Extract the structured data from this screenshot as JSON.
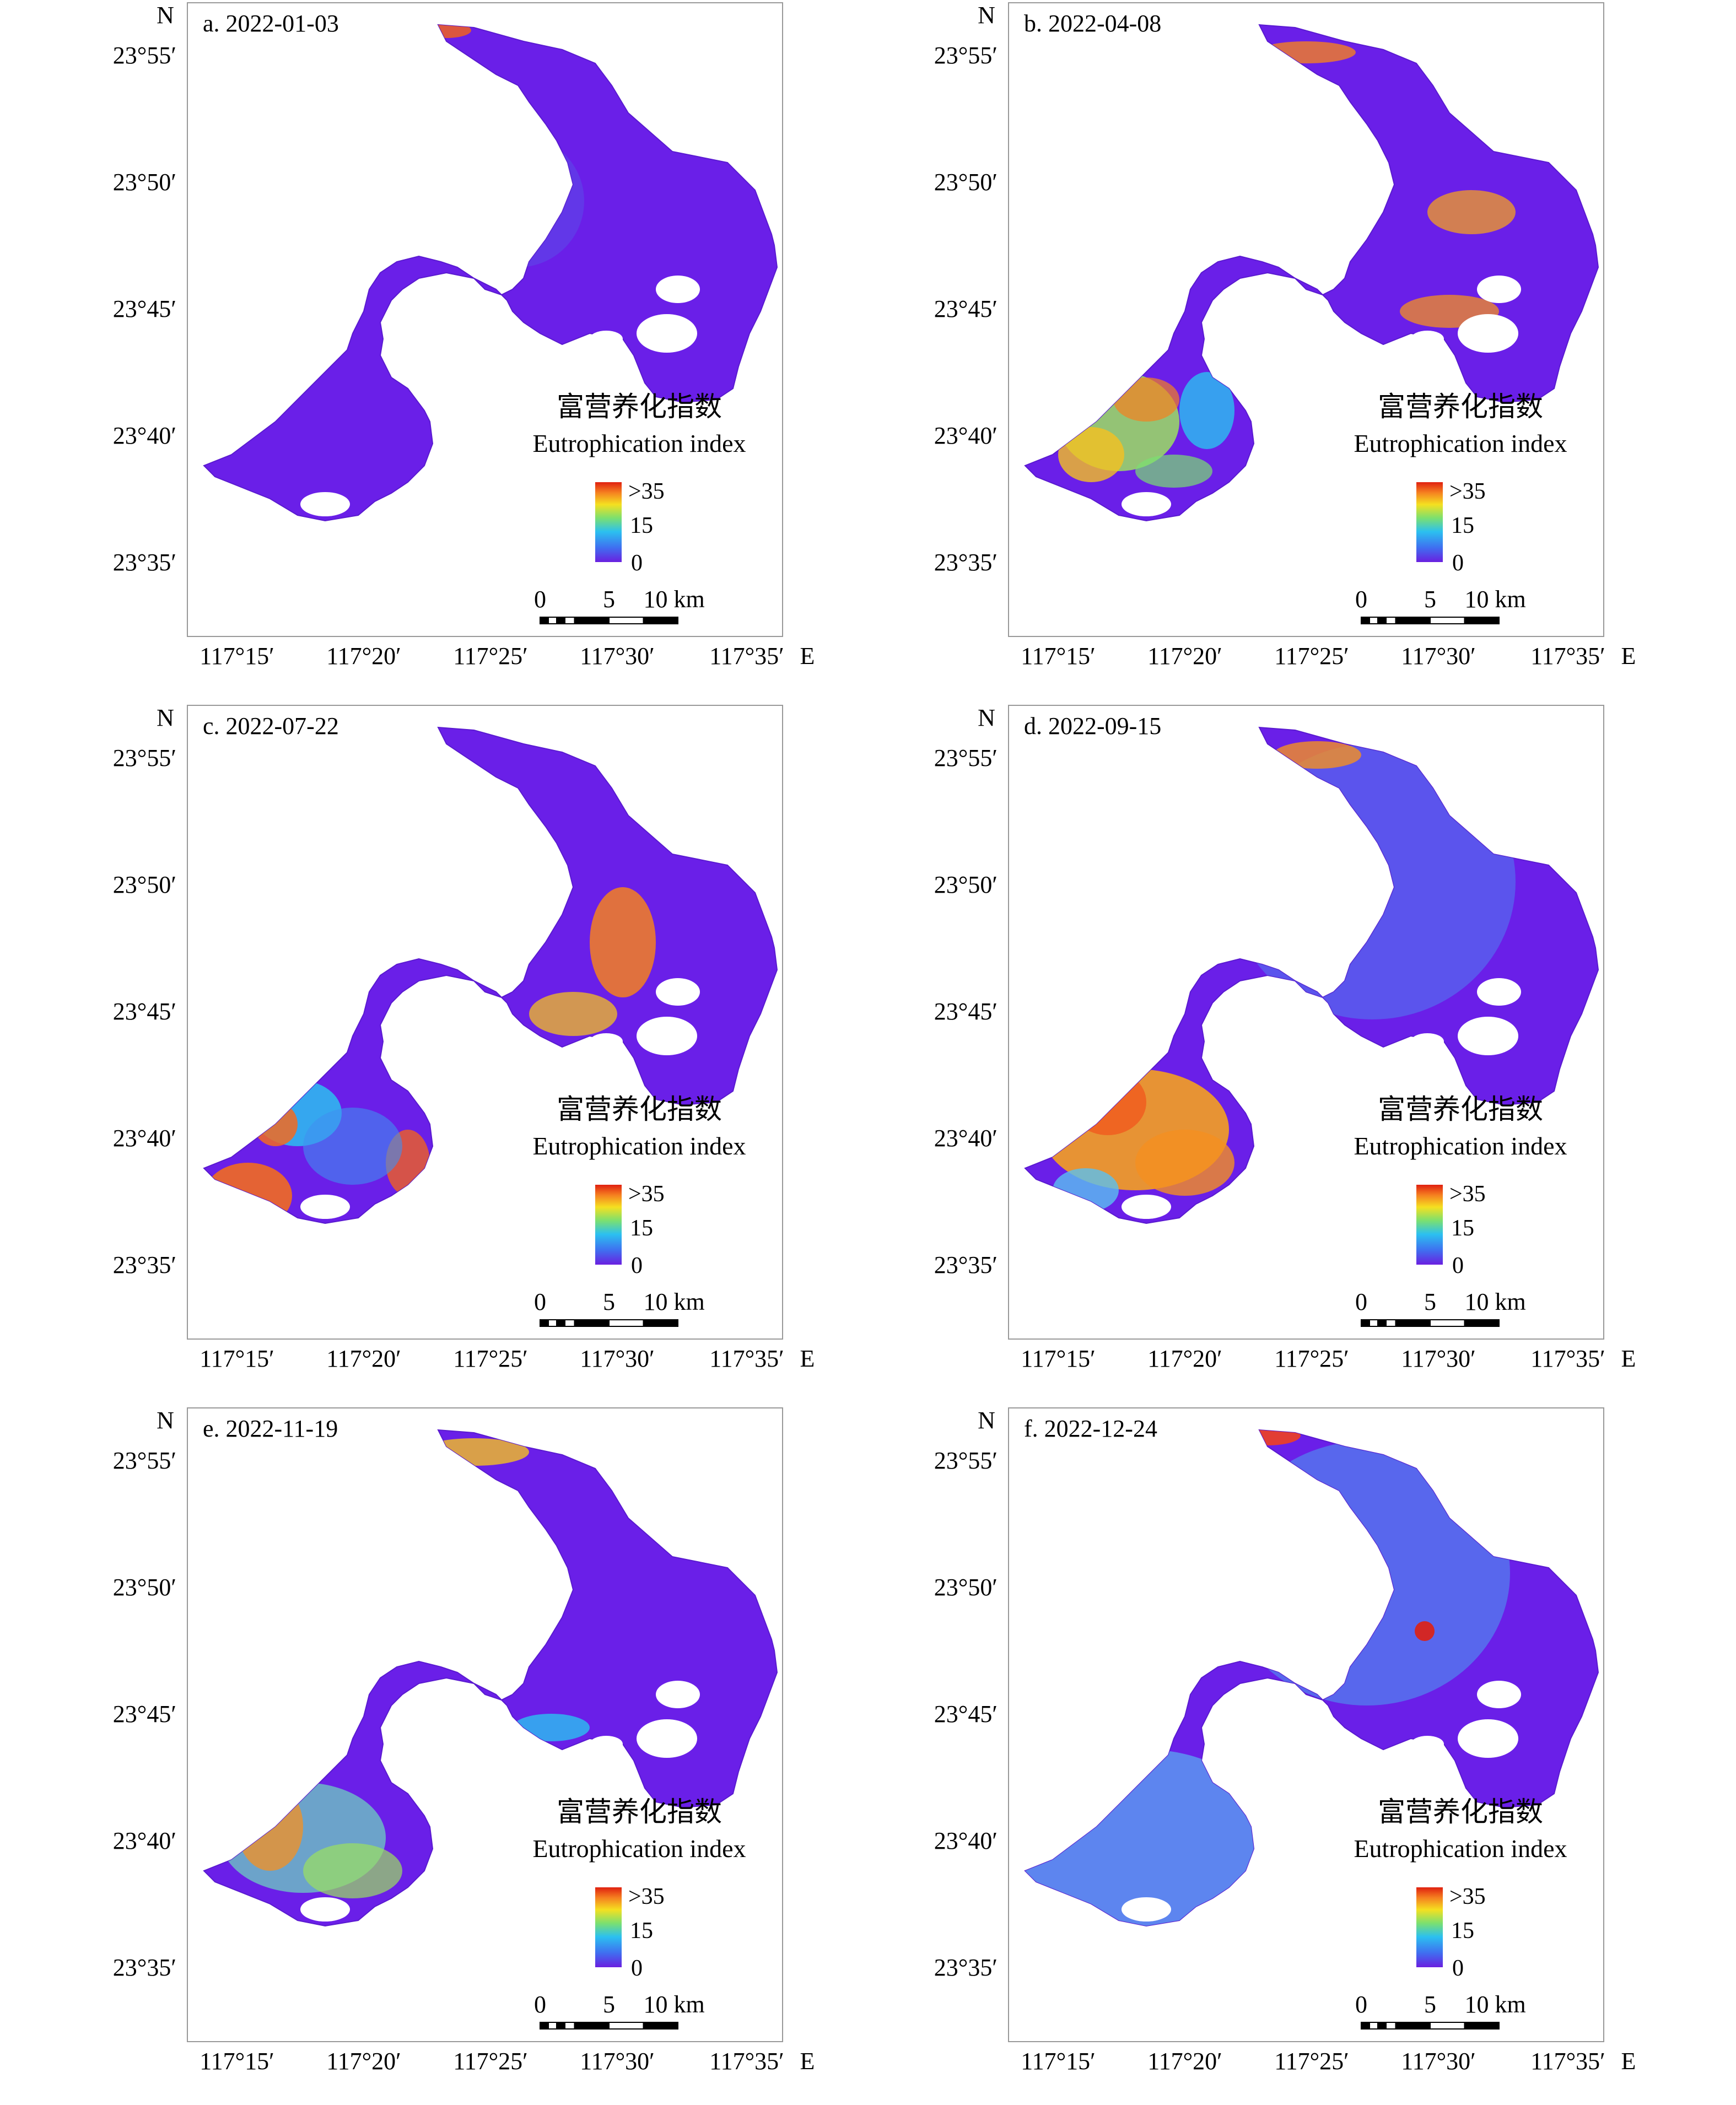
{
  "axes": {
    "lat_ticks": [
      "23°55′",
      "23°50′",
      "23°45′",
      "23°40′",
      "23°35′"
    ],
    "lon_ticks": [
      "117°15′",
      "117°20′",
      "117°25′",
      "117°30′",
      "117°35′"
    ],
    "north_label": "N",
    "east_label": "E"
  },
  "legend": {
    "title_cn": "富营养化指数",
    "title_en": "Eutrophication index",
    "max_label": ">35",
    "mid_label": "15",
    "min_label": "0",
    "colors": [
      "#6a1fe0",
      "#3f6ff0",
      "#2bc0f0",
      "#7be070",
      "#f5e020",
      "#f58020",
      "#e02010"
    ]
  },
  "scale_bar": {
    "labels": [
      "0",
      "5",
      "10 km"
    ]
  },
  "panels": [
    {
      "label": "a. 2022-01-03",
      "state": "low"
    },
    {
      "label": "b. 2022-04-08",
      "state": "mixed"
    },
    {
      "label": "c. 2022-07-22",
      "state": "patchy-high"
    },
    {
      "label": "d. 2022-09-15",
      "state": "southwest-high"
    },
    {
      "label": "e. 2022-11-19",
      "state": "southwest-moderate"
    },
    {
      "label": "f. 2022-12-24",
      "state": "light-blue"
    }
  ]
}
